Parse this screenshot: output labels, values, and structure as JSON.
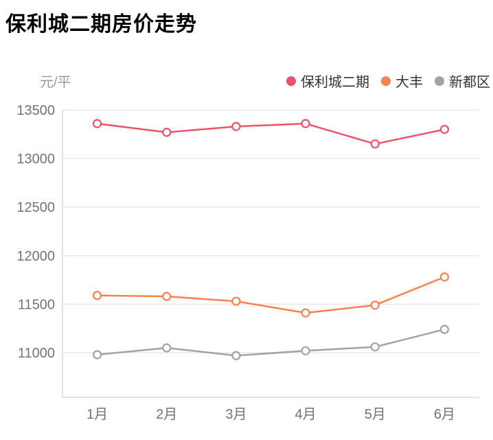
{
  "title": "保利城二期房价走势",
  "y_axis_unit": "元/平",
  "legend": [
    {
      "label": "保利城二期",
      "color": "#f05068"
    },
    {
      "label": "大丰",
      "color": "#fc8049"
    },
    {
      "label": "新都区",
      "color": "#a2a2a2"
    }
  ],
  "colors": {
    "grid": "#e6e6e6",
    "axis": "#d9d9d9",
    "tick_text": "#737373",
    "title_text": "#000000",
    "unit_text": "#999999",
    "legend_text": "#333333",
    "marker_fill": "#ffffff"
  },
  "chart_data": {
    "type": "line",
    "categories": [
      "1月",
      "2月",
      "3月",
      "4月",
      "5月",
      "6月"
    ],
    "series": [
      {
        "name": "保利城二期",
        "color": "#f05068",
        "values": [
          13360,
          13270,
          13330,
          13360,
          13150,
          13300
        ]
      },
      {
        "name": "大丰",
        "color": "#fc8049",
        "values": [
          11590,
          11580,
          11530,
          11410,
          11490,
          11780
        ]
      },
      {
        "name": "新都区",
        "color": "#a2a2a2",
        "values": [
          10980,
          11050,
          10970,
          11020,
          11060,
          11240
        ]
      }
    ],
    "title": "保利城二期房价走势",
    "xlabel": "",
    "ylabel": "元/平",
    "yticks": [
      11000,
      11500,
      12000,
      12500,
      13000,
      13500
    ],
    "ylim": [
      10540,
      13500
    ],
    "grid": true,
    "legend_position": "top-right",
    "marker": "hollow-circle"
  }
}
